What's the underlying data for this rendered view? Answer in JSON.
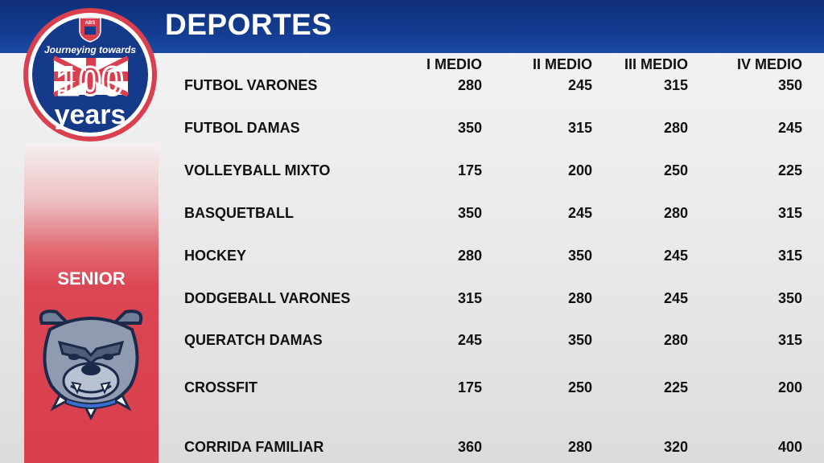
{
  "title": "DEPORTES",
  "sidebar_label": "SENIOR",
  "logo": {
    "top_text": "Journeying towards",
    "number": "100",
    "bottom_text": "years",
    "crest_text": "ABS"
  },
  "columns": [
    "I MEDIO",
    "II MEDIO",
    "III MEDIO",
    "IV MEDIO"
  ],
  "rows": [
    {
      "label": "FUTBOL VARONES",
      "values": [
        "280",
        "245",
        "315",
        "350"
      ]
    },
    {
      "label": "FUTBOL DAMAS",
      "values": [
        "350",
        "315",
        "280",
        "245"
      ]
    },
    {
      "label": "VOLLEYBALL MIXTO",
      "values": [
        "175",
        "200",
        "250",
        "225"
      ]
    },
    {
      "label": "BASQUETBALL",
      "values": [
        "350",
        "245",
        "280",
        "315"
      ]
    },
    {
      "label": "HOCKEY",
      "values": [
        "280",
        "350",
        "245",
        "315"
      ]
    },
    {
      "label": "DODGEBALL VARONES",
      "values": [
        "315",
        "280",
        "245",
        "350"
      ]
    },
    {
      "label": "QUERATCH DAMAS",
      "values": [
        "245",
        "350",
        "280",
        "315"
      ]
    },
    {
      "label": "CROSSFIT",
      "values": [
        "175",
        "250",
        "225",
        "200"
      ]
    },
    {
      "label": "CORRIDA FAMILIAR",
      "values": [
        "360",
        "280",
        "320",
        "400"
      ]
    }
  ],
  "colors": {
    "header_blue": "#143f95",
    "sidebar_red": "#d93f4e",
    "text": "#111111"
  },
  "icons": [
    "journeying-100-years-logo-icon",
    "bulldog-mascot-icon"
  ]
}
